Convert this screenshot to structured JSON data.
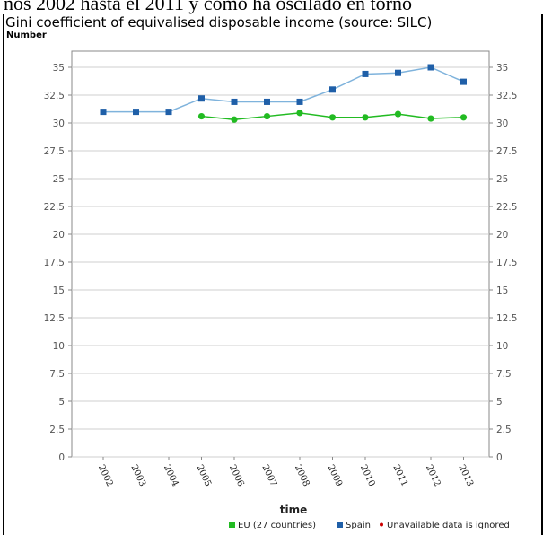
{
  "page": {
    "caption_fragment": "ños 2002 hasta el 2011 y cómo ha oscilado en torno"
  },
  "chart_data": {
    "type": "line",
    "title": "Gini coefficient of equivalised disposable income (source: SILC)",
    "unit_label": "Number",
    "xlabel": "time",
    "ylabel": "",
    "categories": [
      "2002",
      "2003",
      "2004",
      "2005",
      "2006",
      "2007",
      "2008",
      "2009",
      "2010",
      "2011",
      "2012",
      "2013"
    ],
    "ylim": [
      0,
      36.5
    ],
    "yticks": [
      0,
      2.5,
      5,
      7.5,
      10,
      12.5,
      15,
      17.5,
      20,
      22.5,
      25,
      27.5,
      30,
      32.5,
      35
    ],
    "grid": true,
    "legend_position": "bottom",
    "series": [
      {
        "name": "EU (27 countries)",
        "color": "#22bb22",
        "marker": "circle",
        "values": [
          null,
          null,
          null,
          30.6,
          30.3,
          30.6,
          30.9,
          30.5,
          30.5,
          30.8,
          30.4,
          30.5
        ]
      },
      {
        "name": "Spain",
        "color": "#1f5fa8",
        "line_color": "#7fb3dc",
        "marker": "square",
        "values": [
          31.0,
          31.0,
          31.0,
          32.2,
          31.9,
          31.9,
          31.9,
          33.0,
          34.4,
          34.5,
          35.0,
          33.7
        ]
      }
    ],
    "legend_note": "Unavailable data is ignored",
    "legend_note_color": "#cc0000"
  }
}
